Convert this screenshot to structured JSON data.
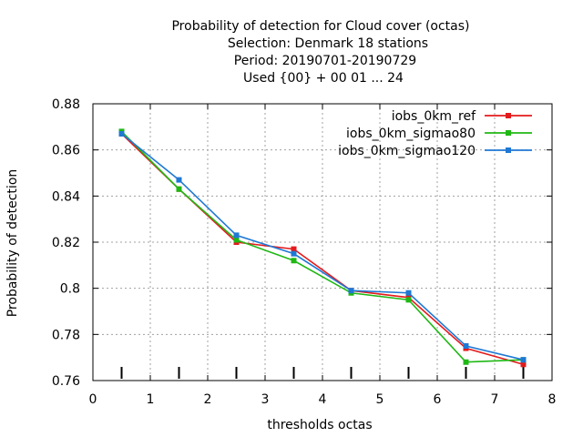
{
  "chart_data": {
    "type": "line",
    "title_lines": [
      "Probability of detection  for Cloud cover (octas)",
      "Selection: Denmark     18 stations",
      "Period: 20190701-20190729",
      "Used {00} + 00 01 ... 24"
    ],
    "xlabel": "thresholds octas",
    "ylabel": "Probability of detection",
    "xlim": [
      0,
      8
    ],
    "ylim": [
      0.76,
      0.88
    ],
    "xticks": [
      0,
      1,
      2,
      3,
      4,
      5,
      6,
      7,
      8
    ],
    "yticks": [
      0.76,
      0.78,
      0.8,
      0.82,
      0.84,
      0.86,
      0.88
    ],
    "ytick_labels": [
      "0.76",
      "0.78",
      "0.8",
      "0.82",
      "0.84",
      "0.86",
      "0.88"
    ],
    "grid": true,
    "legend_position": "top-right",
    "x": [
      0.5,
      1.5,
      2.5,
      3.5,
      4.5,
      5.5,
      6.5,
      7.5
    ],
    "threshold_markers": [
      0.5,
      1.5,
      2.5,
      3.5,
      4.5,
      5.5,
      6.5,
      7.5
    ],
    "series": [
      {
        "name": "iobs_0km_ref",
        "color": "#e41a1c",
        "values": [
          0.867,
          0.843,
          0.82,
          0.817,
          0.799,
          0.796,
          0.774,
          0.767
        ]
      },
      {
        "name": "iobs_0km_sigmao80",
        "color": "#1fb814",
        "values": [
          0.868,
          0.843,
          0.821,
          0.812,
          0.798,
          0.795,
          0.768,
          0.769
        ]
      },
      {
        "name": "iobs_0km_sigmao120",
        "color": "#1f78d4",
        "values": [
          0.867,
          0.847,
          0.823,
          0.815,
          0.799,
          0.798,
          0.775,
          0.769
        ]
      }
    ]
  }
}
